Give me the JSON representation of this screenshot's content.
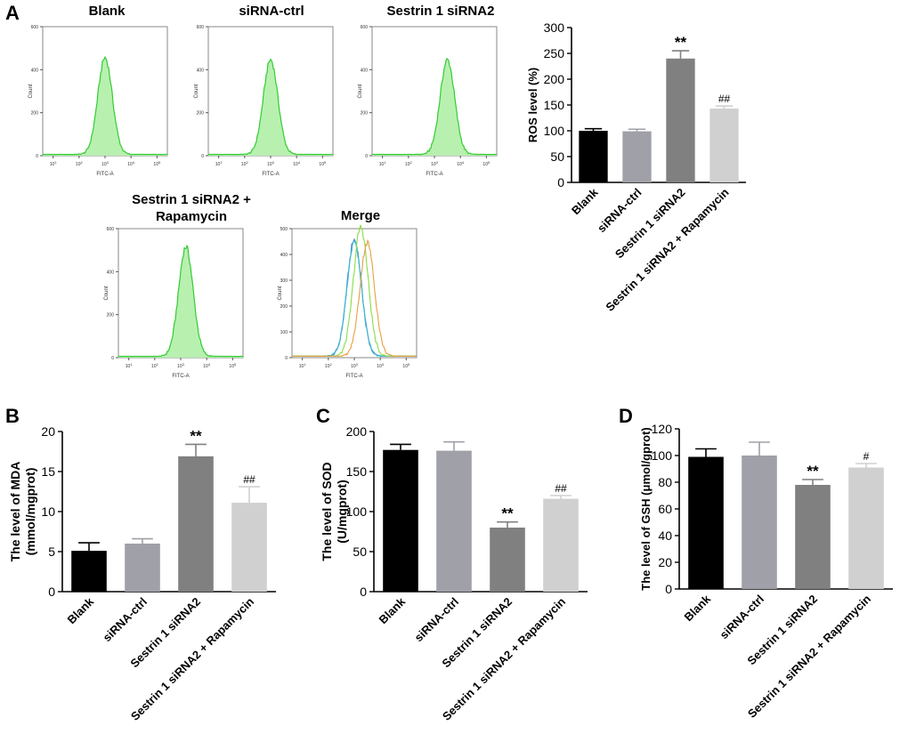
{
  "panels": {
    "A": "A",
    "B": "B",
    "C": "C",
    "D": "D"
  },
  "flow_titles": {
    "blank": "Blank",
    "ctrl": "siRNA-ctrl",
    "sestrin": "Sestrin 1 siRNA2",
    "sestrin_rapa_l1": "Sestrin 1 siRNA2 +",
    "sestrin_rapa_l2": "Rapamycin",
    "merge": "Merge"
  },
  "flow_axis": {
    "xlabel": "FITC-A",
    "ylabel": "Count"
  },
  "colors": {
    "histogram_fill": "#b8f0b0",
    "histogram_line": "#33cc33",
    "merge_lines": [
      "#4a7fd4",
      "#33bbcc",
      "#88dd44",
      "#e6a040"
    ],
    "bars": [
      "#000000",
      "#a0a0a8",
      "#808080",
      "#d0d0d0"
    ]
  },
  "chart_data": [
    {
      "id": "flow-blank",
      "type": "area",
      "title": "Blank",
      "xlabel": "FITC-A",
      "ylabel": "Count",
      "x_ticks": [
        "10^1",
        "10^2",
        "10^3",
        "10^4",
        "10^5"
      ],
      "y_ticks": [
        0,
        200,
        400,
        600
      ],
      "ylim": [
        0,
        600
      ],
      "peak_log10": 3.0,
      "peak_count": 450
    },
    {
      "id": "flow-ctrl",
      "type": "area",
      "title": "siRNA-ctrl",
      "xlabel": "FITC-A",
      "ylabel": "Count",
      "x_ticks": [
        "10^1",
        "10^2",
        "10^3",
        "10^4",
        "10^5"
      ],
      "y_ticks": [
        0,
        200,
        400,
        600
      ],
      "ylim": [
        0,
        600
      ],
      "peak_log10": 3.0,
      "peak_count": 440
    },
    {
      "id": "flow-sestrin",
      "type": "area",
      "title": "Sestrin 1 siRNA2",
      "xlabel": "FITC-A",
      "ylabel": "Count",
      "x_ticks": [
        "10^1",
        "10^2",
        "10^3",
        "10^4",
        "10^5"
      ],
      "y_ticks": [
        0,
        200,
        400,
        600
      ],
      "ylim": [
        0,
        600
      ],
      "peak_log10": 3.5,
      "peak_count": 440
    },
    {
      "id": "flow-sestrin-rapa",
      "type": "area",
      "title": "Sestrin 1 siRNA2 + Rapamycin",
      "xlabel": "FITC-A",
      "ylabel": "Count",
      "x_ticks": [
        "10^1",
        "10^2",
        "10^3",
        "10^4",
        "10^5"
      ],
      "y_ticks": [
        0,
        200,
        400,
        600
      ],
      "ylim": [
        0,
        600
      ],
      "peak_log10": 3.2,
      "peak_count": 510
    },
    {
      "id": "flow-merge",
      "type": "line",
      "title": "Merge",
      "xlabel": "FITC-A",
      "ylabel": "Count",
      "x_ticks": [
        "10^1",
        "10^2",
        "10^3",
        "10^4",
        "10^5"
      ],
      "y_ticks": [
        0,
        100,
        200,
        300,
        400,
        500
      ],
      "ylim": [
        0,
        500
      ],
      "series": [
        {
          "name": "Blank",
          "peak_log10": 3.0,
          "peak_count": 450
        },
        {
          "name": "siRNA-ctrl",
          "peak_log10": 3.0,
          "peak_count": 440
        },
        {
          "name": "Sestrin 1 siRNA2 + Rapamycin",
          "peak_log10": 3.25,
          "peak_count": 500
        },
        {
          "name": "Sestrin 1 siRNA2",
          "peak_log10": 3.5,
          "peak_count": 440
        }
      ]
    },
    {
      "id": "ros",
      "type": "bar",
      "ylabel": "ROS level (%)",
      "categories": [
        "Blank",
        "siRNA-ctrl",
        "Sestrin 1 siRNA2",
        "Sestrin 1 siRNA2 + Rapamycin"
      ],
      "values": [
        100,
        99,
        240,
        143
      ],
      "errors": [
        4,
        4,
        15,
        5
      ],
      "annotations": [
        "",
        "",
        "**",
        "##"
      ],
      "ylim": [
        0,
        300
      ],
      "y_ticks": [
        0,
        50,
        100,
        150,
        200,
        250,
        300
      ]
    },
    {
      "id": "mda",
      "type": "bar",
      "ylabel": "The level of MDA (mmol/mgprot)",
      "categories": [
        "Blank",
        "siRNA-ctrl",
        "Sestrin 1 siRNA2",
        "Sestrin 1 siRNA2 + Rapamycin"
      ],
      "values": [
        5.1,
        6.0,
        16.9,
        11.1
      ],
      "errors": [
        1.0,
        0.6,
        1.5,
        2.0
      ],
      "annotations": [
        "",
        "",
        "**",
        "##"
      ],
      "ylim": [
        0,
        20
      ],
      "y_ticks": [
        0,
        5,
        10,
        15,
        20
      ]
    },
    {
      "id": "sod",
      "type": "bar",
      "ylabel": "The level of SOD (U/mgprot)",
      "categories": [
        "Blank",
        "siRNA-ctrl",
        "Sestrin 1 siRNA2",
        "Sestrin 1 siRNA2 + Rapamycin"
      ],
      "values": [
        177,
        176,
        80,
        116
      ],
      "errors": [
        7,
        11,
        7,
        4
      ],
      "annotations": [
        "",
        "",
        "**",
        "##"
      ],
      "ylim": [
        0,
        200
      ],
      "y_ticks": [
        0,
        50,
        100,
        150,
        200
      ]
    },
    {
      "id": "gsh",
      "type": "bar",
      "ylabel": "The level of GSH (μmol/gprot)",
      "categories": [
        "Blank",
        "siRNA-ctrl",
        "Sestrin 1 siRNA2",
        "Sestrin 1 siRNA2 + Rapamycin"
      ],
      "values": [
        99,
        100,
        78,
        91
      ],
      "errors": [
        6,
        10,
        4,
        3
      ],
      "annotations": [
        "",
        "",
        "**",
        "#"
      ],
      "ylim": [
        0,
        120
      ],
      "y_ticks": [
        0,
        20,
        40,
        60,
        80,
        100,
        120
      ]
    }
  ]
}
